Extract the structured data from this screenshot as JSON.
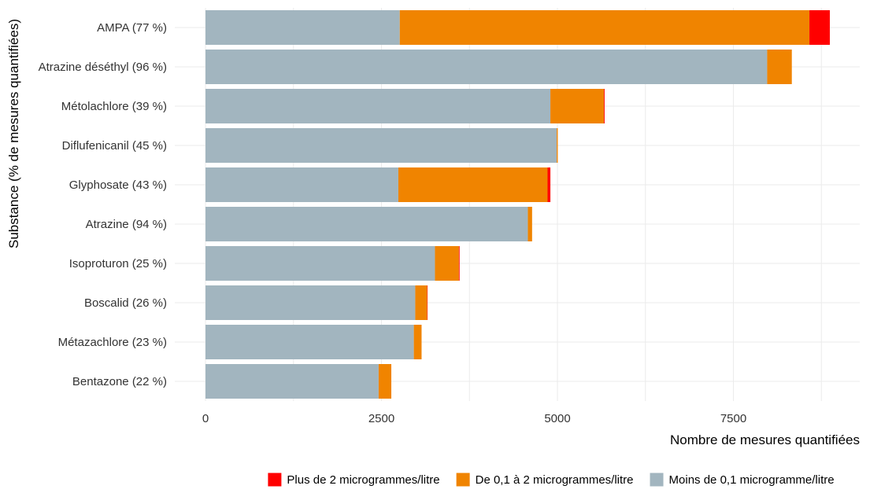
{
  "chart_data": {
    "type": "bar",
    "orientation": "horizontal",
    "stacked": true,
    "xlabel": "Nombre de mesures quantifiées",
    "ylabel": "Substance (% de mesures quantifiées)",
    "xlim": [
      0,
      9100
    ],
    "xticks": [
      0,
      2500,
      5000,
      7500
    ],
    "xtick_labels": [
      "0",
      "2500",
      "5000",
      "7500"
    ],
    "grid": true,
    "legend_position": "bottom",
    "categories": [
      "AMPA (77 %)",
      "Atrazine déséthyl (96 %)",
      "Métolachlore (39 %)",
      "Diflufenicanil (45 %)",
      "Glyphosate (43 %)",
      "Atrazine (94 %)",
      "Isoproturon (25 %)",
      "Boscalid (26 %)",
      "Métazachlore (23 %)",
      "Bentazone (22 %)"
    ],
    "series": [
      {
        "name": "Moins de 0,1 microgramme/litre",
        "color": "#a2b5bf",
        "values": [
          2760,
          7980,
          4900,
          4990,
          2740,
          4580,
          3260,
          2980,
          2960,
          2460
        ]
      },
      {
        "name": "De 0,1 à 2 microgrammes/litre",
        "color": "#f08400",
        "values": [
          5820,
          350,
          760,
          15,
          2120,
          60,
          340,
          170,
          110,
          180
        ]
      },
      {
        "name": "Plus de 2 microgrammes/litre",
        "color": "#ff0000",
        "values": [
          290,
          0,
          10,
          0,
          40,
          0,
          10,
          5,
          0,
          0
        ]
      }
    ],
    "legend_order": [
      "Plus de 2 microgrammes/litre",
      "De 0,1 à 2 microgrammes/litre",
      "Moins de 0,1 microgramme/litre"
    ]
  }
}
